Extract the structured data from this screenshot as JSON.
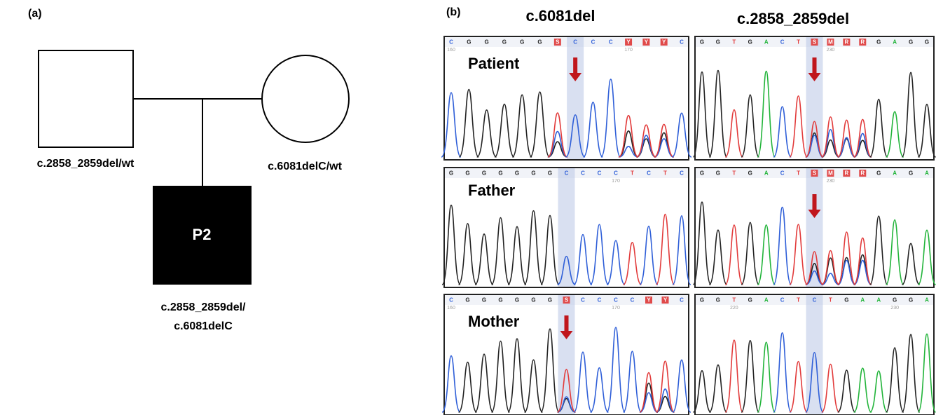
{
  "panel_a": {
    "label": "(a)",
    "father_genotype": "c.2858_2859del/wt",
    "mother_genotype": "c.6081delC/wt",
    "proband": "P2",
    "proband_genotype": [
      "c.2858_2859del/",
      "c.6081delC"
    ]
  },
  "panel_b": {
    "label": "(b)",
    "columns": [
      "c.6081del",
      "c.2858_2859del"
    ],
    "rows": [
      {
        "name": "Patient",
        "sequences": [
          {
            "bases": [
              "C",
              "G",
              "G",
              "G",
              "G",
              "G",
              "S",
              "C",
              "C",
              "C",
              "Y",
              "Y",
              "Y",
              "C"
            ],
            "positions": [
              160,
              170
            ]
          },
          {
            "bases": [
              "G",
              "G",
              "T",
              "G",
              "A",
              "C",
              "T",
              "S",
              "M",
              "R",
              "R",
              "G",
              "A",
              "G",
              "G"
            ],
            "positions": [
              230
            ]
          }
        ]
      },
      {
        "name": "Father",
        "sequences": [
          {
            "bases": [
              "G",
              "G",
              "G",
              "G",
              "G",
              "G",
              "G",
              "C",
              "C",
              "C",
              "C",
              "T",
              "C",
              "T",
              "C"
            ],
            "positions": [
              170
            ]
          },
          {
            "bases": [
              "G",
              "G",
              "T",
              "G",
              "A",
              "C",
              "T",
              "S",
              "M",
              "R",
              "R",
              "G",
              "A",
              "G",
              "A"
            ],
            "positions": [
              230
            ]
          }
        ]
      },
      {
        "name": "Mother",
        "sequences": [
          {
            "bases": [
              "C",
              "G",
              "G",
              "G",
              "G",
              "G",
              "G",
              "S",
              "C",
              "C",
              "C",
              "C",
              "Y",
              "Y",
              "C"
            ],
            "positions": [
              160,
              170
            ]
          },
          {
            "bases": [
              "G",
              "G",
              "T",
              "G",
              "A",
              "C",
              "T",
              "C",
              "T",
              "G",
              "A",
              "A",
              "G",
              "G",
              "A"
            ],
            "positions": [
              220,
              230
            ]
          }
        ]
      }
    ]
  }
}
